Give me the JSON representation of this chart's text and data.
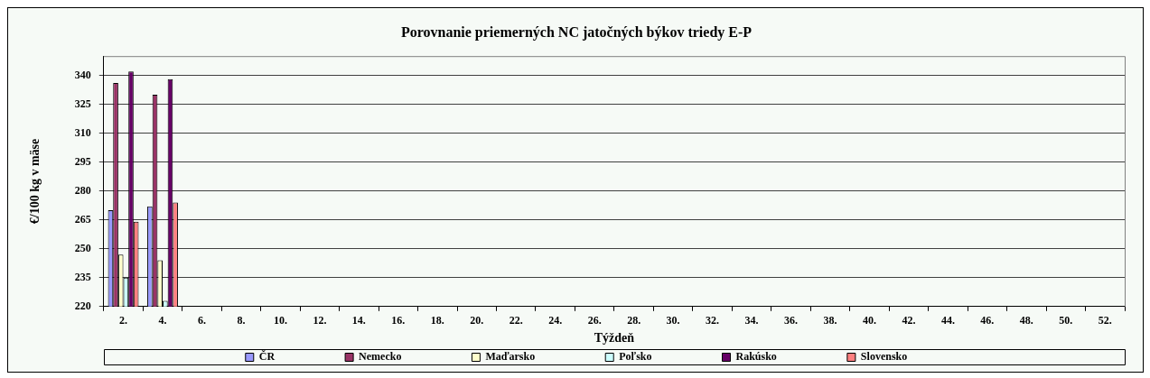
{
  "chart_data": {
    "type": "bar",
    "title": "Porovnanie priemerných NC jatočných býkov triedy E-P",
    "xlabel": "Týždeň",
    "ylabel": "€/100 kg v mäse",
    "categories": [
      "2.",
      "4.",
      "6.",
      "8.",
      "10.",
      "12.",
      "14.",
      "16.",
      "18.",
      "20.",
      "22.",
      "24.",
      "26.",
      "28.",
      "30.",
      "32.",
      "34.",
      "36.",
      "38.",
      "40.",
      "42.",
      "44.",
      "46.",
      "48.",
      "50.",
      "52."
    ],
    "series": [
      {
        "name": "ČR",
        "color": "#9999ff",
        "values": [
          270,
          272,
          null,
          null,
          null,
          null,
          null,
          null,
          null,
          null,
          null,
          null,
          null,
          null,
          null,
          null,
          null,
          null,
          null,
          null,
          null,
          null,
          null,
          null,
          null,
          null
        ]
      },
      {
        "name": "Nemecko",
        "color": "#993366",
        "values": [
          336,
          330,
          null,
          null,
          null,
          null,
          null,
          null,
          null,
          null,
          null,
          null,
          null,
          null,
          null,
          null,
          null,
          null,
          null,
          null,
          null,
          null,
          null,
          null,
          null,
          null
        ]
      },
      {
        "name": "Maďarsko",
        "color": "#ffffcc",
        "values": [
          247,
          244,
          null,
          null,
          null,
          null,
          null,
          null,
          null,
          null,
          null,
          null,
          null,
          null,
          null,
          null,
          null,
          null,
          null,
          null,
          null,
          null,
          null,
          null,
          null,
          null
        ]
      },
      {
        "name": "Poľsko",
        "color": "#ccffff",
        "values": [
          235,
          223,
          null,
          null,
          null,
          null,
          null,
          null,
          null,
          null,
          null,
          null,
          null,
          null,
          null,
          null,
          null,
          null,
          null,
          null,
          null,
          null,
          null,
          null,
          null,
          null
        ]
      },
      {
        "name": "Rakúsko",
        "color": "#660066",
        "values": [
          342,
          338,
          null,
          null,
          null,
          null,
          null,
          null,
          null,
          null,
          null,
          null,
          null,
          null,
          null,
          null,
          null,
          null,
          null,
          null,
          null,
          null,
          null,
          null,
          null,
          null
        ]
      },
      {
        "name": "Slovensko",
        "color": "#ff8080",
        "values": [
          264,
          274,
          null,
          null,
          null,
          null,
          null,
          null,
          null,
          null,
          null,
          null,
          null,
          null,
          null,
          null,
          null,
          null,
          null,
          null,
          null,
          null,
          null,
          null,
          null,
          null
        ]
      }
    ],
    "ylim": [
      220,
      350
    ],
    "yticks": [
      220,
      235,
      250,
      265,
      280,
      295,
      310,
      325,
      340
    ],
    "grid": "y",
    "legend": "bottom"
  }
}
